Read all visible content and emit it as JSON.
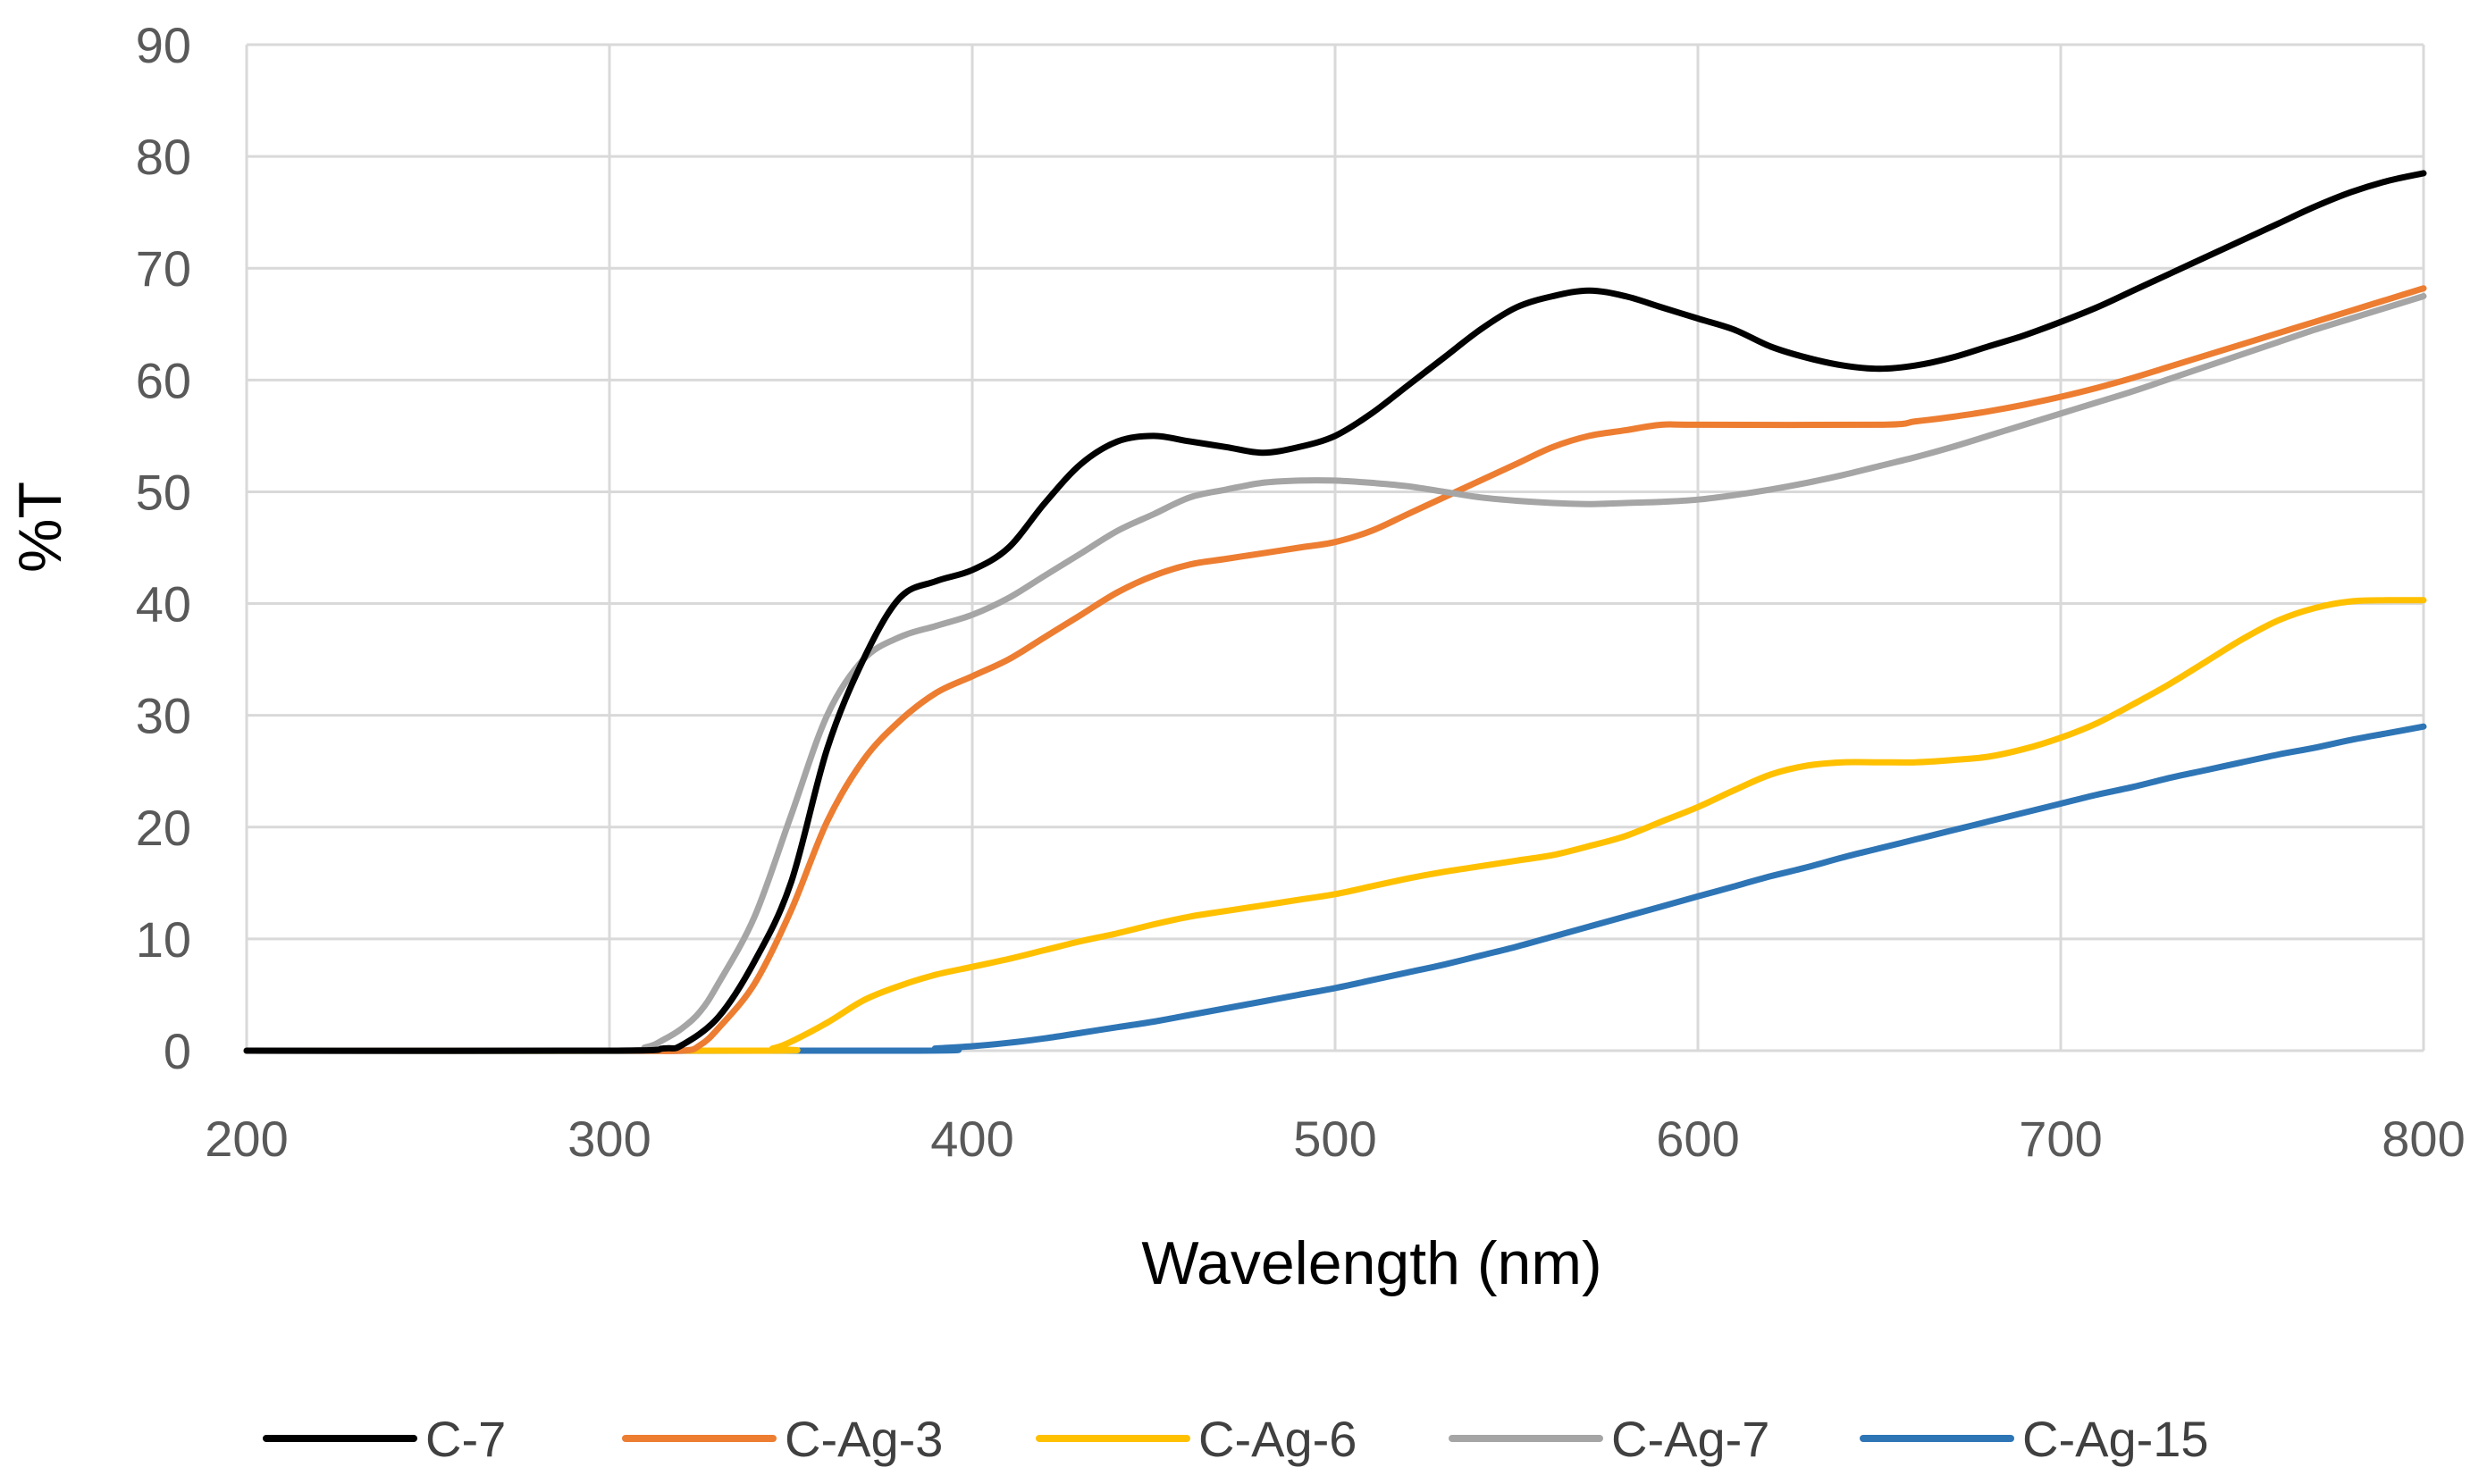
{
  "chart_data": {
    "type": "line",
    "title": "",
    "xlabel": "Wavelength (nm)",
    "ylabel": "%T",
    "xlim": [
      200,
      800
    ],
    "ylim": [
      0,
      90
    ],
    "xticks": [
      200,
      300,
      400,
      500,
      600,
      700,
      800
    ],
    "yticks": [
      0,
      10,
      20,
      30,
      40,
      50,
      60,
      70,
      80,
      90
    ],
    "xtick_labels": [
      "200",
      "300",
      "400",
      "500",
      "600",
      "700",
      "800"
    ],
    "ytick_labels": [
      "0",
      "10",
      "20",
      "30",
      "40",
      "50",
      "60",
      "70",
      "80",
      "90"
    ],
    "grid": true,
    "legend_position": "bottom",
    "series": [
      {
        "name": "C-7",
        "color": "#000000",
        "x": [
          200,
          300,
          315,
          320,
          330,
          340,
          350,
          360,
          370,
          380,
          390,
          400,
          410,
          420,
          430,
          440,
          450,
          460,
          470,
          480,
          490,
          500,
          510,
          520,
          530,
          540,
          550,
          560,
          570,
          580,
          590,
          600,
          610,
          620,
          630,
          640,
          650,
          660,
          670,
          680,
          690,
          700,
          710,
          720,
          730,
          740,
          750,
          760,
          770,
          780,
          790,
          800
        ],
        "y": [
          0,
          0,
          0.2,
          0.5,
          3,
          8,
          15,
          27,
          35,
          40.5,
          42,
          43,
          45,
          49,
          52.5,
          54.5,
          55,
          54.5,
          54,
          53.5,
          54,
          55,
          57,
          59.5,
          62,
          64.5,
          66.5,
          67.5,
          68,
          67.5,
          66.5,
          65.5,
          64.5,
          63,
          62,
          61.3,
          61,
          61.3,
          62,
          63,
          64,
          65.2,
          66.5,
          68,
          69.5,
          71,
          72.5,
          74,
          75.5,
          76.8,
          77.8,
          78.5
        ]
      },
      {
        "name": "C-Ag-3",
        "color": "#ED7D31",
        "x": [
          200,
          300,
          320,
          325,
          330,
          340,
          350,
          360,
          370,
          380,
          390,
          400,
          410,
          420,
          430,
          440,
          450,
          460,
          470,
          480,
          490,
          500,
          510,
          520,
          530,
          540,
          550,
          560,
          570,
          580,
          590,
          600,
          650,
          660,
          670,
          680,
          690,
          700,
          710,
          720,
          730,
          740,
          750,
          760,
          770,
          780,
          790,
          800
        ],
        "y": [
          0,
          0,
          0,
          0.5,
          2,
          6,
          12.5,
          20.5,
          26,
          29.5,
          32,
          33.5,
          35,
          37,
          39,
          41,
          42.5,
          43.5,
          44,
          44.5,
          45,
          45.5,
          46.5,
          48,
          49.5,
          51,
          52.5,
          54,
          55,
          55.5,
          56,
          56,
          56,
          56.3,
          56.7,
          57.2,
          57.8,
          58.5,
          59.3,
          60.2,
          61.2,
          62.2,
          63.2,
          64.2,
          65.2,
          66.2,
          67.2,
          68.2
        ]
      },
      {
        "name": "C-Ag-6",
        "color": "#FFC000",
        "x": [
          200,
          340,
          345,
          350,
          360,
          370,
          380,
          390,
          400,
          410,
          420,
          430,
          440,
          450,
          460,
          470,
          480,
          490,
          500,
          510,
          520,
          530,
          540,
          550,
          560,
          570,
          580,
          590,
          600,
          610,
          620,
          630,
          640,
          650,
          660,
          670,
          680,
          690,
          700,
          710,
          720,
          730,
          740,
          750,
          760,
          770,
          780,
          790,
          800
        ],
        "y": [
          0,
          0,
          0.2,
          0.8,
          2.5,
          4.5,
          5.8,
          6.8,
          7.5,
          8.2,
          9,
          9.8,
          10.5,
          11.3,
          12,
          12.5,
          13,
          13.5,
          14,
          14.7,
          15.4,
          16,
          16.5,
          17,
          17.5,
          18.3,
          19.2,
          20.5,
          21.8,
          23.3,
          24.7,
          25.5,
          25.8,
          25.8,
          25.8,
          26,
          26.3,
          27,
          28,
          29.3,
          31,
          32.8,
          34.8,
          36.8,
          38.5,
          39.6,
          40.2,
          40.3,
          40.3
        ]
      },
      {
        "name": "C-Ag-7",
        "color": "#A5A5A5",
        "x": [
          200,
          300,
          310,
          315,
          320,
          325,
          330,
          340,
          350,
          360,
          370,
          380,
          390,
          400,
          410,
          420,
          430,
          440,
          450,
          460,
          470,
          480,
          490,
          500,
          510,
          520,
          530,
          540,
          550,
          560,
          570,
          580,
          590,
          600,
          610,
          620,
          630,
          640,
          650,
          660,
          670,
          680,
          690,
          700,
          710,
          720,
          730,
          740,
          750,
          760,
          770,
          780,
          790,
          800
        ],
        "y": [
          0,
          0,
          0.3,
          1,
          2,
          3.5,
          6,
          12,
          21,
          30,
          35,
          37,
          38,
          39,
          40.5,
          42.5,
          44.5,
          46.5,
          48,
          49.5,
          50.2,
          50.8,
          51,
          51,
          50.8,
          50.5,
          50,
          49.5,
          49.2,
          49,
          48.9,
          49,
          49.1,
          49.3,
          49.7,
          50.2,
          50.8,
          51.5,
          52.3,
          53.1,
          54,
          55,
          56,
          57,
          58,
          59,
          60.1,
          61.2,
          62.3,
          63.4,
          64.5,
          65.5,
          66.5,
          67.5
        ]
      },
      {
        "name": "C-Ag-15",
        "color": "#2E75B6",
        "x": [
          200,
          380,
          390,
          400,
          410,
          420,
          430,
          440,
          450,
          460,
          470,
          480,
          490,
          500,
          510,
          520,
          530,
          540,
          550,
          560,
          570,
          580,
          590,
          600,
          610,
          620,
          630,
          640,
          650,
          660,
          670,
          680,
          690,
          700,
          710,
          720,
          730,
          740,
          750,
          760,
          770,
          780,
          790,
          800
        ],
        "y": [
          0,
          0,
          0.2,
          0.4,
          0.7,
          1.1,
          1.6,
          2.1,
          2.6,
          3.2,
          3.8,
          4.4,
          5,
          5.6,
          6.3,
          7,
          7.7,
          8.5,
          9.3,
          10.2,
          11.1,
          12,
          12.9,
          13.8,
          14.7,
          15.6,
          16.4,
          17.3,
          18.1,
          18.9,
          19.7,
          20.5,
          21.3,
          22.1,
          22.9,
          23.6,
          24.4,
          25.1,
          25.8,
          26.5,
          27.1,
          27.8,
          28.4,
          29
        ]
      }
    ]
  }
}
